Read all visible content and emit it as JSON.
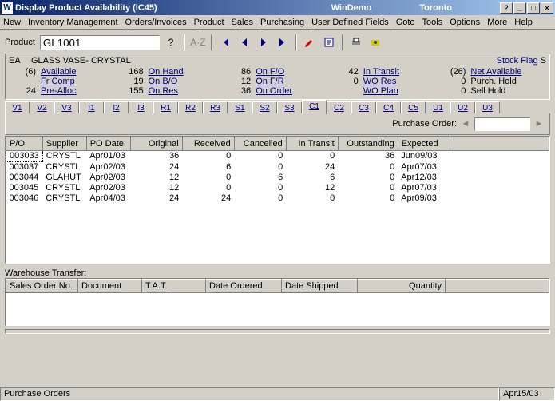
{
  "title": {
    "app": "Display Product Availability (IC45)",
    "env": "WinDemo",
    "loc": "Toronto"
  },
  "menu": [
    "New",
    "Inventory Management",
    "Orders/Invoices",
    "Product",
    "Sales",
    "Purchasing",
    "User Defined Fields",
    "Goto",
    "Tools",
    "Options",
    "More",
    "Help"
  ],
  "product": {
    "label": "Product",
    "value": "GL1001"
  },
  "uom": "EA",
  "description": "GLASS VASE- CRYSTAL",
  "stock_flag_label": "Stock Flag",
  "stock_flag_value": "S",
  "availability_columns": [
    [
      {
        "v": "(6)",
        "l": "Available",
        "link": true
      },
      {
        "v": "",
        "l": "Fr Comp",
        "link": true
      },
      {
        "v": "24",
        "l": "Pre-Alloc",
        "link": true
      }
    ],
    [
      {
        "v": "168",
        "l": "On Hand",
        "link": true
      },
      {
        "v": "19",
        "l": "On B/O",
        "link": true
      },
      {
        "v": "155",
        "l": "On Res",
        "link": true
      }
    ],
    [
      {
        "v": "86",
        "l": "On F/O",
        "link": true
      },
      {
        "v": "12",
        "l": "On F/R",
        "link": true
      },
      {
        "v": "36",
        "l": "On Order",
        "link": true
      }
    ],
    [
      {
        "v": "42",
        "l": "In Transit",
        "link": true
      },
      {
        "v": "0",
        "l": "WO Res",
        "link": true
      },
      {
        "v": "",
        "l": "WO Plan",
        "link": true
      }
    ],
    [
      {
        "v": "(26)",
        "l": "Net Available",
        "link": true
      },
      {
        "v": "0",
        "l": "Purch. Hold",
        "link": false
      },
      {
        "v": "0",
        "l": "Sell Hold",
        "link": false
      }
    ]
  ],
  "tabs": [
    "V1",
    "V2",
    "V3",
    "I1",
    "I2",
    "I3",
    "R1",
    "R2",
    "R3",
    "S1",
    "S2",
    "S3",
    "C1",
    "C2",
    "C3",
    "C4",
    "C5",
    "U1",
    "U2",
    "U3"
  ],
  "active_tab": 12,
  "po_label": "Purchase Order:",
  "po_columns": [
    "P/O",
    "Supplier",
    "PO Date",
    "Original",
    "Received",
    "Cancelled",
    "In Transit",
    "Outstanding",
    "Expected"
  ],
  "po_rows": [
    [
      "003033",
      "CRYSTL",
      "Apr01/03",
      "36",
      "0",
      "0",
      "0",
      "36",
      "Jun09/03"
    ],
    [
      "003037",
      "CRYSTL",
      "Apr02/03",
      "24",
      "6",
      "0",
      "24",
      "0",
      "Apr07/03"
    ],
    [
      "003044",
      "GLAHUT",
      "Apr02/03",
      "12",
      "0",
      "6",
      "6",
      "0",
      "Apr12/03"
    ],
    [
      "003045",
      "CRYSTL",
      "Apr02/03",
      "12",
      "0",
      "0",
      "12",
      "0",
      "Apr07/03"
    ],
    [
      "003046",
      "CRYSTL",
      "Apr04/03",
      "24",
      "24",
      "0",
      "0",
      "0",
      "Apr09/03"
    ]
  ],
  "wt_label": "Warehouse Transfer:",
  "wt_columns": [
    "Sales Order No.",
    "Document",
    "T.A.T.",
    "Date Ordered",
    "Date Shipped",
    "Quantity"
  ],
  "status_left": "Purchase Orders",
  "status_right": "Apr15/03",
  "colors": {
    "link": "#000080",
    "titlebar_start": "#0a246a",
    "titlebar_end": "#a6caf0",
    "face": "#d4d0c8"
  }
}
